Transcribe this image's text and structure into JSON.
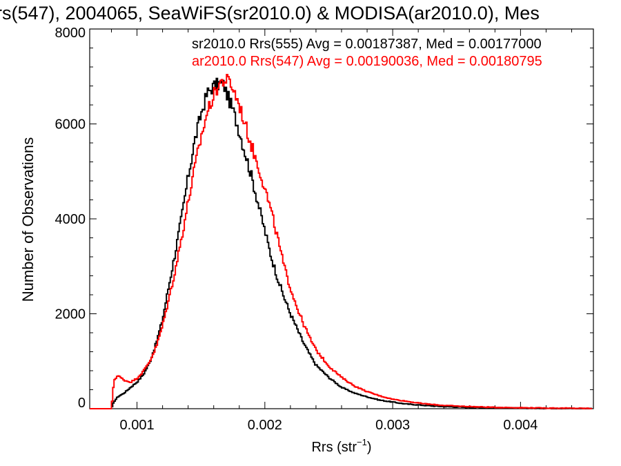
{
  "chart_data": {
    "type": "line",
    "title": "rs(547), 2004065, SeaWiFS(sr2010.0) & MODISA(ar2010.0), Mes",
    "xlabel": "Rrs (str",
    "xlabel_superscript": "−1",
    "xlabel_suffix": ")",
    "ylabel": "Number of Observations",
    "xlim": [
      0.00063,
      0.00457
    ],
    "ylim": [
      0,
      8000
    ],
    "xticks": [
      0.001,
      0.002,
      0.003,
      0.004
    ],
    "xtick_labels": [
      "0.001",
      "0.002",
      "0.003",
      "0.004"
    ],
    "yticks": [
      0,
      2000,
      4000,
      6000,
      8000
    ],
    "ytick_labels": [
      "0",
      "2000",
      "4000",
      "6000",
      "8000"
    ],
    "grid": false,
    "step": true,
    "series": [
      {
        "name": "sr2010.0 Rrs(555) Avg = 0.00187387, Med = 0.00177000",
        "color": "#000000",
        "x": [
          0.00063,
          0.0008,
          0.00082,
          0.00085,
          0.0009,
          0.00095,
          0.001,
          0.00105,
          0.0011,
          0.00115,
          0.0012,
          0.00125,
          0.0013,
          0.00135,
          0.0014,
          0.00145,
          0.0015,
          0.00155,
          0.0016,
          0.00165,
          0.00168,
          0.0017,
          0.00175,
          0.0018,
          0.00185,
          0.0019,
          0.00195,
          0.002,
          0.00205,
          0.0021,
          0.00215,
          0.0022,
          0.00225,
          0.0023,
          0.00235,
          0.0024,
          0.0025,
          0.0026,
          0.0027,
          0.0028,
          0.0029,
          0.003,
          0.0031,
          0.0032,
          0.0033,
          0.0034,
          0.0035,
          0.0036,
          0.0037,
          0.0038,
          0.004,
          0.0042,
          0.0044,
          0.00457
        ],
        "values": [
          0,
          0,
          150,
          250,
          330,
          450,
          560,
          720,
          980,
          1380,
          1880,
          2600,
          3300,
          4050,
          4880,
          5620,
          6200,
          6650,
          6800,
          6850,
          6820,
          6650,
          6300,
          5850,
          5350,
          4850,
          4300,
          3750,
          3200,
          2750,
          2350,
          2000,
          1700,
          1400,
          1150,
          920,
          660,
          450,
          330,
          250,
          180,
          140,
          100,
          80,
          60,
          45,
          35,
          28,
          22,
          18,
          12,
          8,
          5,
          3
        ]
      },
      {
        "name": "ar2010.0 Rrs(547) Avg = 0.00190036, Med = 0.00180795",
        "color": "#ff0000",
        "x": [
          0.00063,
          0.0008,
          0.00082,
          0.00085,
          0.00088,
          0.0009,
          0.00095,
          0.001,
          0.00105,
          0.0011,
          0.00115,
          0.0012,
          0.00125,
          0.0013,
          0.00135,
          0.0014,
          0.00145,
          0.0015,
          0.00155,
          0.0016,
          0.00165,
          0.0017,
          0.00172,
          0.00175,
          0.0018,
          0.00185,
          0.0019,
          0.00195,
          0.002,
          0.00205,
          0.0021,
          0.00215,
          0.0022,
          0.00225,
          0.0023,
          0.00235,
          0.0024,
          0.0025,
          0.0026,
          0.0027,
          0.0028,
          0.0029,
          0.003,
          0.0031,
          0.0032,
          0.0033,
          0.0034,
          0.0035,
          0.0036,
          0.0037,
          0.0038,
          0.004,
          0.0042,
          0.0044,
          0.00457
        ],
        "values": [
          0,
          0,
          600,
          700,
          640,
          600,
          560,
          640,
          790,
          1000,
          1300,
          1750,
          2320,
          2930,
          3620,
          4350,
          5050,
          5700,
          6250,
          6600,
          6880,
          6920,
          6900,
          6750,
          6400,
          5950,
          5500,
          5100,
          4650,
          4150,
          3600,
          3000,
          2550,
          2150,
          1800,
          1500,
          1240,
          900,
          660,
          480,
          360,
          270,
          200,
          160,
          120,
          90,
          70,
          55,
          45,
          36,
          28,
          20,
          14,
          9,
          6
        ]
      }
    ]
  }
}
